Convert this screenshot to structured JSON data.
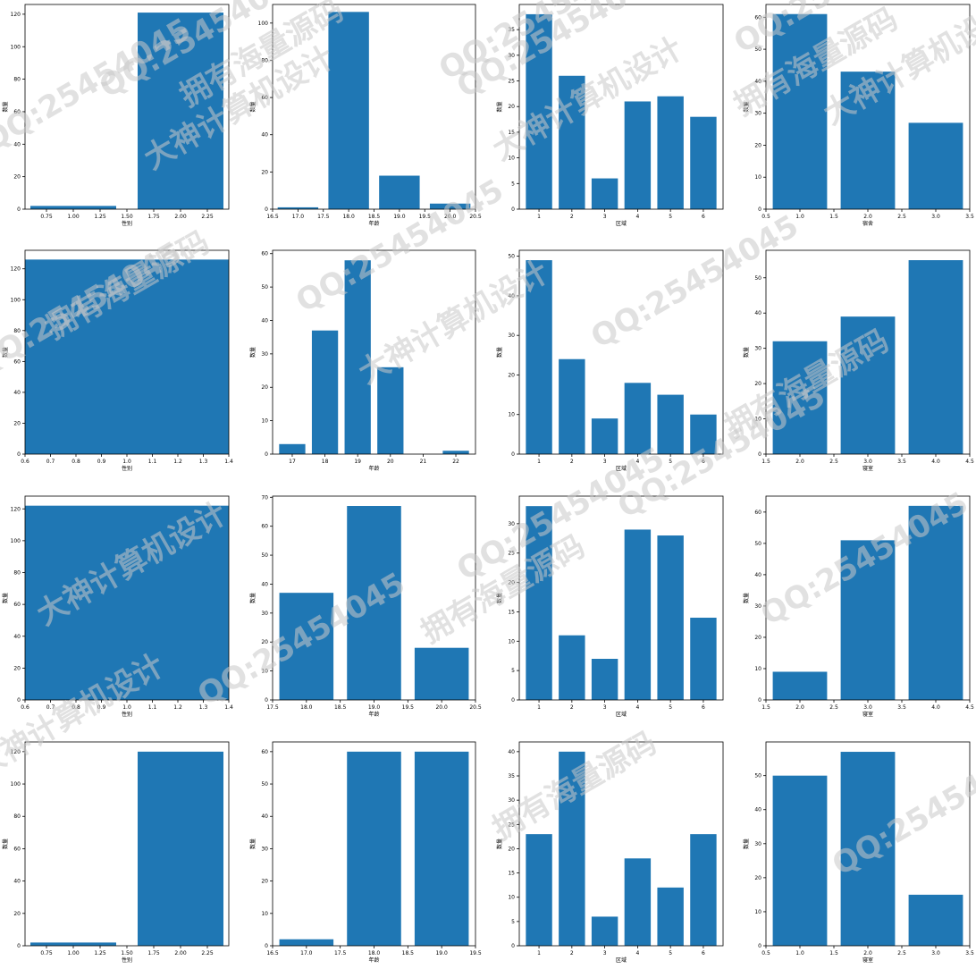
{
  "chart_data": [
    {
      "type": "bar",
      "xlabel": "性别",
      "ylabel": "数量",
      "x": [
        1,
        2
      ],
      "values": [
        2,
        121
      ],
      "xlim": [
        0.55,
        2.45
      ],
      "ylim": [
        0,
        126
      ],
      "xticks": [
        "0.75",
        "1.00",
        "1.25",
        "1.50",
        "1.75",
        "2.00",
        "2.25"
      ],
      "yticks": [
        "0",
        "20",
        "40",
        "60",
        "80",
        "100",
        "120"
      ]
    },
    {
      "type": "bar",
      "xlabel": "年龄",
      "ylabel": "数量",
      "x": [
        17,
        18,
        19,
        20
      ],
      "values": [
        1,
        106,
        18,
        3
      ],
      "xlim": [
        16.5,
        20.5
      ],
      "ylim": [
        0,
        110
      ],
      "xticks": [
        "16.5",
        "17.0",
        "17.5",
        "18.0",
        "18.5",
        "19.0",
        "19.5",
        "20.0",
        "20.5"
      ],
      "yticks": [
        "0",
        "20",
        "40",
        "60",
        "80",
        "100"
      ]
    },
    {
      "type": "bar",
      "xlabel": "区域",
      "ylabel": "数量",
      "x": [
        1,
        2,
        3,
        4,
        5,
        6
      ],
      "values": [
        38,
        26,
        6,
        21,
        22,
        18
      ],
      "xlim": [
        0.4,
        6.6
      ],
      "ylim": [
        0,
        39.9
      ],
      "xticks": [
        "1",
        "2",
        "3",
        "4",
        "5",
        "6"
      ],
      "yticks": [
        "0",
        "5",
        "10",
        "15",
        "20",
        "25",
        "30",
        "35"
      ]
    },
    {
      "type": "bar",
      "xlabel": "宿舍",
      "ylabel": "数量",
      "x": [
        1,
        2,
        3
      ],
      "values": [
        61,
        43,
        27
      ],
      "xlim": [
        0.5,
        3.5
      ],
      "ylim": [
        0,
        64
      ],
      "xticks": [
        "0.5",
        "1.0",
        "1.5",
        "2.0",
        "2.5",
        "3.0",
        "3.5"
      ],
      "yticks": [
        "0",
        "10",
        "20",
        "30",
        "40",
        "50",
        "60"
      ]
    },
    {
      "type": "bar",
      "xlabel": "性别",
      "ylabel": "数量",
      "x": [
        1
      ],
      "values": [
        126
      ],
      "xlim": [
        0.6,
        1.4
      ],
      "ylim": [
        0,
        132
      ],
      "xticks": [
        "0.6",
        "0.7",
        "0.8",
        "0.9",
        "1.0",
        "1.1",
        "1.2",
        "1.3",
        "1.4"
      ],
      "yticks": [
        "0",
        "20",
        "40",
        "60",
        "80",
        "100",
        "120"
      ]
    },
    {
      "type": "bar",
      "xlabel": "年龄",
      "ylabel": "数量",
      "x": [
        17,
        18,
        19,
        20,
        21,
        22
      ],
      "values": [
        3,
        37,
        58,
        26,
        0,
        1
      ],
      "xlim": [
        16.4,
        22.6
      ],
      "ylim": [
        0,
        61
      ],
      "xticks": [
        "17",
        "18",
        "19",
        "20",
        "21",
        "22"
      ],
      "yticks": [
        "0",
        "10",
        "20",
        "30",
        "40",
        "50",
        "60"
      ]
    },
    {
      "type": "bar",
      "xlabel": "区域",
      "ylabel": "数量",
      "x": [
        1,
        2,
        3,
        4,
        5,
        6
      ],
      "values": [
        49,
        24,
        9,
        18,
        15,
        10
      ],
      "xlim": [
        0.4,
        6.6
      ],
      "ylim": [
        0,
        51.5
      ],
      "xticks": [
        "1",
        "2",
        "3",
        "4",
        "5",
        "6"
      ],
      "yticks": [
        "0",
        "10",
        "20",
        "30",
        "40",
        "50"
      ]
    },
    {
      "type": "bar",
      "xlabel": "寝室",
      "ylabel": "数量",
      "x": [
        2,
        3,
        4
      ],
      "values": [
        32,
        39,
        55
      ],
      "xlim": [
        1.5,
        4.5
      ],
      "ylim": [
        0,
        57.8
      ],
      "xticks": [
        "1.5",
        "2.0",
        "2.5",
        "3.0",
        "3.5",
        "4.0",
        "4.5"
      ],
      "yticks": [
        "0",
        "10",
        "20",
        "30",
        "40",
        "50"
      ]
    },
    {
      "type": "bar",
      "xlabel": "性别",
      "ylabel": "数量",
      "x": [
        1
      ],
      "values": [
        122
      ],
      "xlim": [
        0.6,
        1.4
      ],
      "ylim": [
        0,
        128
      ],
      "xticks": [
        "0.6",
        "0.7",
        "0.8",
        "0.9",
        "1.0",
        "1.1",
        "1.2",
        "1.3",
        "1.4"
      ],
      "yticks": [
        "0",
        "20",
        "40",
        "60",
        "80",
        "100",
        "120"
      ]
    },
    {
      "type": "bar",
      "xlabel": "年龄",
      "ylabel": "数量",
      "x": [
        18,
        19,
        20
      ],
      "values": [
        37,
        67,
        18
      ],
      "xlim": [
        17.5,
        20.5
      ],
      "ylim": [
        0,
        70.4
      ],
      "xticks": [
        "17.5",
        "18.0",
        "18.5",
        "19.0",
        "19.5",
        "20.0",
        "20.5"
      ],
      "yticks": [
        "0",
        "10",
        "20",
        "30",
        "40",
        "50",
        "60",
        "70"
      ]
    },
    {
      "type": "bar",
      "xlabel": "区域",
      "ylabel": "数量",
      "x": [
        1,
        2,
        3,
        4,
        5,
        6
      ],
      "values": [
        33,
        11,
        7,
        29,
        28,
        14
      ],
      "xlim": [
        0.4,
        6.6
      ],
      "ylim": [
        0,
        34.7
      ],
      "xticks": [
        "1",
        "2",
        "3",
        "4",
        "5",
        "6"
      ],
      "yticks": [
        "0",
        "5",
        "10",
        "15",
        "20",
        "25",
        "30"
      ]
    },
    {
      "type": "bar",
      "xlabel": "寝室",
      "ylabel": "数量",
      "x": [
        2,
        3,
        4
      ],
      "values": [
        9,
        51,
        62
      ],
      "xlim": [
        1.5,
        4.5
      ],
      "ylim": [
        0,
        65.1
      ],
      "xticks": [
        "1.5",
        "2.0",
        "2.5",
        "3.0",
        "3.5",
        "4.0",
        "4.5"
      ],
      "yticks": [
        "0",
        "10",
        "20",
        "30",
        "40",
        "50",
        "60"
      ]
    },
    {
      "type": "bar",
      "xlabel": "性别",
      "ylabel": "数量",
      "x": [
        1,
        2
      ],
      "values": [
        2,
        120
      ],
      "xlim": [
        0.55,
        2.45
      ],
      "ylim": [
        0,
        126
      ],
      "xticks": [
        "0.75",
        "1.00",
        "1.25",
        "1.50",
        "1.75",
        "2.00",
        "2.25"
      ],
      "yticks": [
        "0",
        "20",
        "40",
        "60",
        "80",
        "100",
        "120"
      ]
    },
    {
      "type": "bar",
      "xlabel": "年龄",
      "ylabel": "数量",
      "x": [
        17,
        18,
        19
      ],
      "values": [
        2,
        60,
        60
      ],
      "xlim": [
        16.5,
        19.5
      ],
      "ylim": [
        0,
        63
      ],
      "xticks": [
        "16.5",
        "17.0",
        "17.5",
        "18.0",
        "18.5",
        "19.0",
        "19.5"
      ],
      "yticks": [
        "0",
        "10",
        "20",
        "30",
        "40",
        "50",
        "60"
      ]
    },
    {
      "type": "bar",
      "xlabel": "区域",
      "ylabel": "数量",
      "x": [
        1,
        2,
        3,
        4,
        5,
        6
      ],
      "values": [
        23,
        40,
        6,
        18,
        12,
        23
      ],
      "xlim": [
        0.4,
        6.6
      ],
      "ylim": [
        0,
        42
      ],
      "xticks": [
        "1",
        "2",
        "3",
        "4",
        "5",
        "6"
      ],
      "yticks": [
        "0",
        "5",
        "10",
        "15",
        "20",
        "25",
        "30",
        "35",
        "40"
      ]
    },
    {
      "type": "bar",
      "xlabel": "寝室",
      "ylabel": "数量",
      "x": [
        1,
        2,
        3
      ],
      "values": [
        50,
        57,
        15
      ],
      "xlim": [
        0.5,
        3.5
      ],
      "ylim": [
        0,
        59.9
      ],
      "xticks": [
        "0.5",
        "1.0",
        "1.5",
        "2.0",
        "2.5",
        "3.0",
        "3.5"
      ],
      "yticks": [
        "0",
        "10",
        "20",
        "30",
        "40",
        "50"
      ]
    }
  ],
  "style": {
    "bar_color": "#1f77b4",
    "axis_color": "#000000",
    "watermark_color": "#c8c8c8"
  },
  "watermarks": [
    "QQ:25454045",
    "大神计算机设计",
    "QQ:25454045",
    "拥有海量源码",
    "QQ:25454045",
    "大神计算机设计",
    "QQ:25454045",
    "拥有海量源码",
    "QQ:25454045",
    "大神计算机设计",
    "QQ:25454045",
    "拥有海量源码",
    "QQ:25454045",
    "大神计算机设计",
    "QQ:25454045",
    "拥有海量源码",
    "QQ:25454045",
    "大神计算机设计",
    "QQ:25454045",
    "拥有海量源码",
    "QQ:25454045",
    "大神计算机设计",
    "QQ:25454045",
    "拥有海量源码",
    "QQ:25454045"
  ]
}
